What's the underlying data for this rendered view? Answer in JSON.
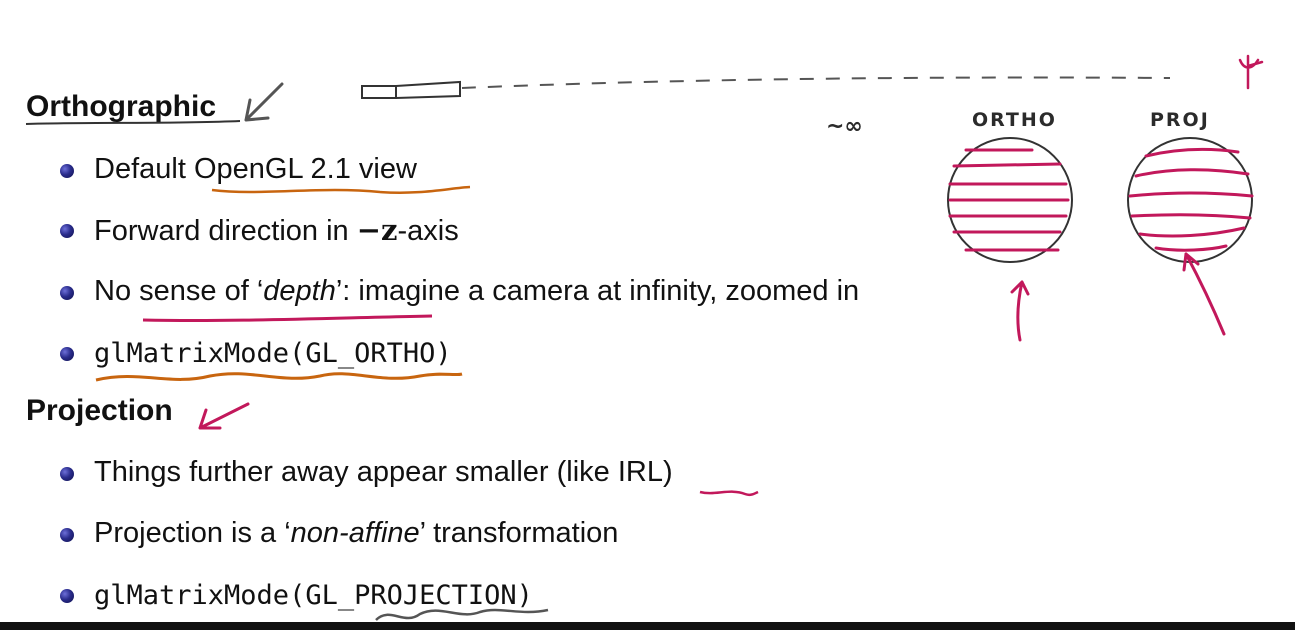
{
  "orthographic": {
    "title": "Orthographic",
    "bullets": [
      {
        "text": "Default OpenGL 2.1 view"
      },
      {
        "prefix": "Forward direction in ",
        "math": "−z",
        "suffix": "-axis"
      },
      {
        "prefix": "No sense of ‘",
        "emph": "depth",
        "suffix": "’: imagine a camera at infinity, zoomed in"
      },
      {
        "code": "glMatrixMode(GL_ORTHO)"
      }
    ]
  },
  "projection": {
    "title": "Projection",
    "bullets": [
      {
        "text": "Things further away appear smaller (like IRL)"
      },
      {
        "prefix": "Projection is a ‘",
        "emph": "non-affine",
        "suffix": "’ transformation"
      },
      {
        "code": "glMatrixMode(GL_PROJECTION)"
      }
    ]
  },
  "annotations": {
    "ortho_label": "ORTHO",
    "proj_label": "PROJ",
    "infinity_label": "~∞",
    "ink_magenta": "#c2185b",
    "ink_orange": "#c8650f",
    "ink_gray": "#555555"
  }
}
